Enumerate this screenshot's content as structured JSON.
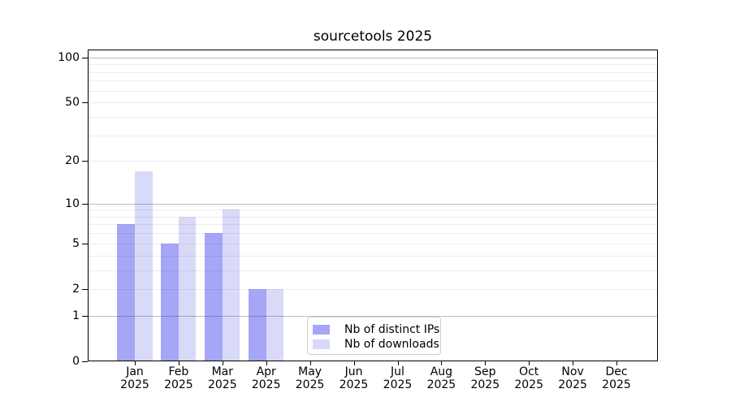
{
  "chart_data": {
    "type": "bar",
    "title": "sourcetools 2025",
    "y_scale": "log1p",
    "ylim": [
      0,
      113
    ],
    "grid": "on",
    "legend_position": "inside-lower-center",
    "categories": [
      "Jan 2025",
      "Feb 2025",
      "Mar 2025",
      "Apr 2025",
      "May 2025",
      "Jun 2025",
      "Jul 2025",
      "Aug 2025",
      "Sep 2025",
      "Oct 2025",
      "Nov 2025",
      "Dec 2025"
    ],
    "x_tick_line1": [
      "Jan",
      "Feb",
      "Mar",
      "Apr",
      "May",
      "Jun",
      "Jul",
      "Aug",
      "Sep",
      "Oct",
      "Nov",
      "Dec"
    ],
    "x_tick_line2": [
      "2025",
      "2025",
      "2025",
      "2025",
      "2025",
      "2025",
      "2025",
      "2025",
      "2025",
      "2025",
      "2025",
      "2025"
    ],
    "y_ticks_labeled": [
      0,
      1,
      2,
      5,
      10,
      20,
      50,
      100
    ],
    "y_gridlines_major": [
      1,
      10,
      100
    ],
    "y_gridlines_minor": [
      2,
      3,
      4,
      5,
      6,
      7,
      8,
      9,
      20,
      30,
      40,
      50,
      60,
      70,
      80,
      90
    ],
    "series": [
      {
        "name": "Nb of distinct IPs",
        "color": "#a6a6f6",
        "values": [
          7,
          5,
          6,
          2,
          0,
          0,
          0,
          0,
          0,
          0,
          0,
          0
        ]
      },
      {
        "name": "Nb of downloads",
        "color": "#d9d9f8",
        "values": [
          17,
          8,
          9,
          2,
          0,
          0,
          0,
          0,
          0,
          0,
          0,
          0
        ]
      }
    ],
    "legend": {
      "items": [
        {
          "label": "Nb of distinct IPs",
          "color": "#a6a6f6"
        },
        {
          "label": "Nb of downloads",
          "color": "#d9d9f8"
        }
      ]
    }
  }
}
